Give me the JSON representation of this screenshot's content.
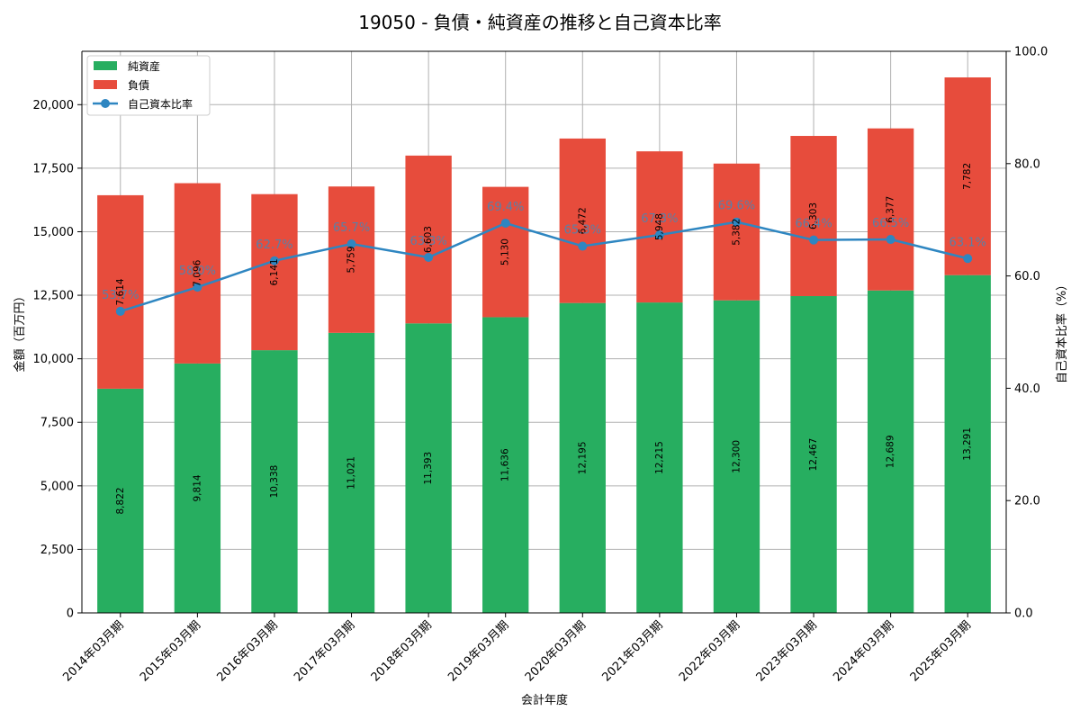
{
  "chart_data": {
    "type": "bar",
    "subtype": "stacked-bar-with-line",
    "title": "19050 - 負債・純資産の推移と自己資本比率",
    "xlabel": "会計年度",
    "ylabel": "金額（百万円）",
    "y2label": "自己資本比率（%）",
    "ylim": [
      0,
      22100
    ],
    "y2lim": [
      0,
      100
    ],
    "grid": true,
    "legend_position": "top-left",
    "categories": [
      "2014年03月期",
      "2015年03月期",
      "2016年03月期",
      "2017年03月期",
      "2018年03月期",
      "2019年03月期",
      "2020年03月期",
      "2021年03月期",
      "2022年03月期",
      "2023年03月期",
      "2024年03月期",
      "2025年03月期"
    ],
    "y_ticks": [
      "0",
      "2,500",
      "5,000",
      "7,500",
      "10,000",
      "12,500",
      "15,000",
      "17,500",
      "20,000"
    ],
    "y2_ticks": [
      "0.0",
      "20.0",
      "40.0",
      "60.0",
      "80.0",
      "100.0"
    ],
    "series": [
      {
        "name": "純資産",
        "kind": "bar",
        "color": "#27ae60",
        "values": [
          8822,
          9814,
          10338,
          11021,
          11393,
          11636,
          12195,
          12215,
          12300,
          12467,
          12689,
          13291
        ],
        "labels": [
          "8,822",
          "9,814",
          "10,338",
          "11,021",
          "11,393",
          "11,636",
          "12,195",
          "12,215",
          "12,300",
          "12,467",
          "12,689",
          "13,291"
        ]
      },
      {
        "name": "負債",
        "kind": "bar",
        "color": "#e74c3c",
        "values": [
          7614,
          7096,
          6141,
          5759,
          6603,
          5130,
          6472,
          5948,
          5382,
          6303,
          6377,
          7782
        ],
        "labels": [
          "7,614",
          "7,096",
          "6,141",
          "5,759",
          "6,603",
          "5,130",
          "6,472",
          "5,948",
          "5,382",
          "6,303",
          "6,377",
          "7,782"
        ]
      },
      {
        "name": "自己資本比率",
        "kind": "line",
        "axis": "right",
        "color": "#2e86c1",
        "values": [
          53.7,
          58.0,
          62.7,
          65.7,
          63.3,
          69.4,
          65.3,
          67.3,
          69.6,
          66.4,
          66.5,
          63.1
        ],
        "labels": [
          "53.7%",
          "58.0%",
          "62.7%",
          "65.7%",
          "63.3%",
          "69.4%",
          "65.3%",
          "67.3%",
          "69.6%",
          "66.4%",
          "66.5%",
          "63.1%"
        ]
      }
    ]
  }
}
